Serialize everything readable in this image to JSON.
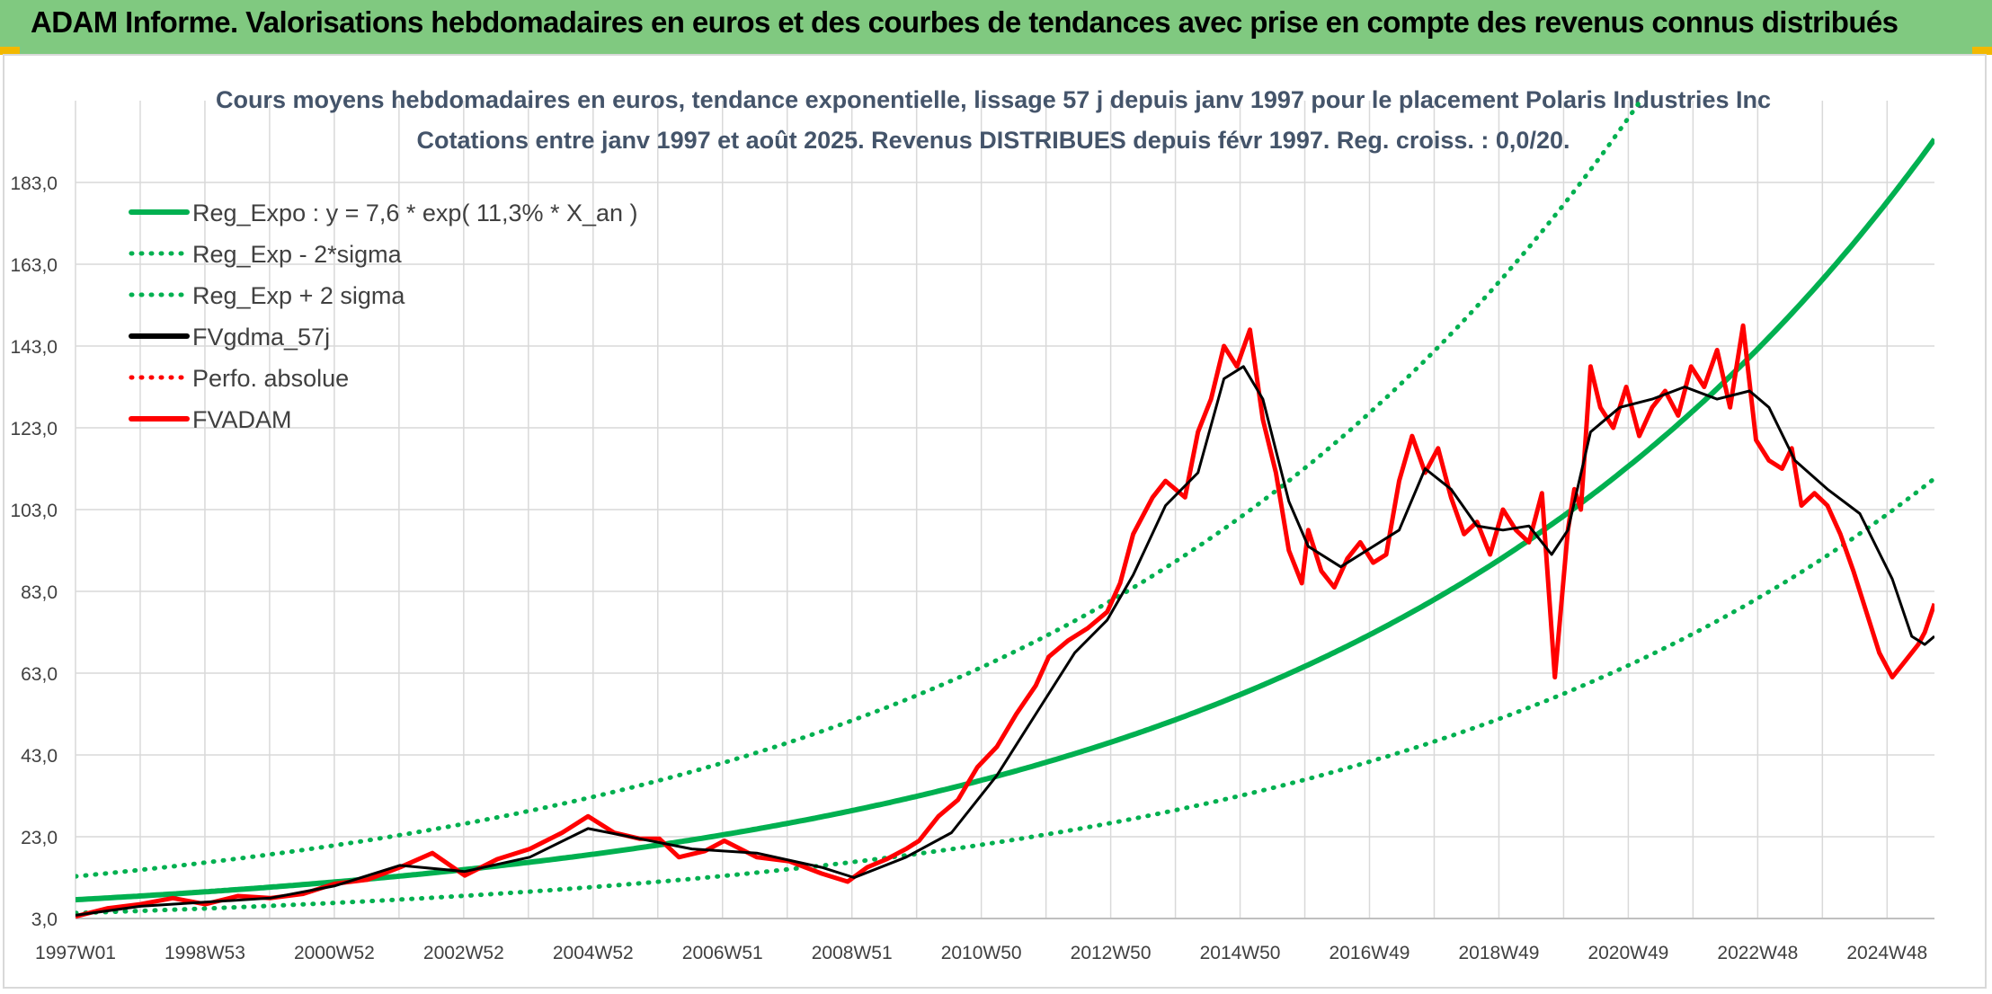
{
  "header": {
    "title": "ADAM Informe. Valorisations hebdomadaires en euros et des courbes de tendances avec prise en compte des revenus connus distribués"
  },
  "colors": {
    "banner": "#80c980",
    "reg_expo": "#00b050",
    "fvgdma": "#000000",
    "fvadam": "#ff0000",
    "perfo": "#ff0000"
  },
  "chart_data": {
    "type": "line",
    "title": "Cours moyens hebdomadaires en euros, tendance exponentielle, lissage 57 j depuis janv 1997 pour le placement Polaris Industries Inc",
    "subtitle": "Cotations entre janv 1997 et août 2025. Revenus DISTRIBUES depuis févr 1997. Reg. croiss. : 0,0/20.",
    "y_ticks": [
      "3,0",
      "23,0",
      "43,0",
      "63,0",
      "83,0",
      "103,0",
      "123,0",
      "143,0",
      "163,0",
      "183,0"
    ],
    "ylim": [
      3,
      183
    ],
    "x_ticks": [
      "1997W01",
      "1998W53",
      "2000W52",
      "2002W52",
      "2004W52",
      "2006W51",
      "2008W51",
      "2010W50",
      "2012W50",
      "2014W50",
      "2016W49",
      "2018W49",
      "2020W49",
      "2022W48",
      "2024W48"
    ],
    "x_range_years": [
      1997.0,
      2025.65
    ],
    "grid": true,
    "legend_position": "top-left",
    "legend": [
      {
        "label": "Reg_Expo : y = 7,6 * exp( 11,3% *  X_an )",
        "style": "solid",
        "color": "#00b050"
      },
      {
        "label": "Reg_Exp - 2*sigma",
        "style": "dotted",
        "color": "#00b050"
      },
      {
        "label": "Reg_Exp + 2 sigma",
        "style": "dotted",
        "color": "#00b050"
      },
      {
        "label": "FVgdma_57j",
        "style": "solid",
        "color": "#000000"
      },
      {
        "label": "Perfo. absolue",
        "style": "dotted",
        "color": "#ff0000"
      },
      {
        "label": "FVADAM",
        "style": "solid",
        "color": "#ff0000"
      }
    ],
    "regression": {
      "a": 7.6,
      "rate": 0.113,
      "sigma_factor": 1.75
    },
    "series": [
      {
        "name": "FVADAM",
        "x": [
          1997.0,
          1997.5,
          1998.0,
          1998.5,
          1999.0,
          1999.5,
          2000.0,
          2000.5,
          2001.0,
          2001.5,
          2002.0,
          2002.5,
          2003.0,
          2003.5,
          2004.0,
          2004.5,
          2004.9,
          2005.3,
          2005.7,
          2006.0,
          2006.3,
          2006.7,
          2007.0,
          2007.5,
          2008.0,
          2008.5,
          2008.9,
          2009.2,
          2009.5,
          2009.8,
          2010.0,
          2010.3,
          2010.6,
          2010.9,
          2011.2,
          2011.5,
          2011.8,
          2012.0,
          2012.3,
          2012.6,
          2012.9,
          2013.1,
          2013.3,
          2013.6,
          2013.8,
          2014.1,
          2014.3,
          2014.5,
          2014.7,
          2014.9,
          2015.1,
          2015.3,
          2015.5,
          2015.7,
          2015.9,
          2016.0,
          2016.2,
          2016.4,
          2016.6,
          2016.8,
          2017.0,
          2017.2,
          2017.4,
          2017.6,
          2017.8,
          2018.0,
          2018.2,
          2018.4,
          2018.6,
          2018.8,
          2019.0,
          2019.2,
          2019.4,
          2019.6,
          2019.8,
          2020.0,
          2020.1,
          2020.2,
          2020.35,
          2020.5,
          2020.7,
          2020.9,
          2021.1,
          2021.3,
          2021.5,
          2021.7,
          2021.9,
          2022.1,
          2022.3,
          2022.5,
          2022.7,
          2022.9,
          2023.1,
          2023.3,
          2023.45,
          2023.6,
          2023.8,
          2024.0,
          2024.2,
          2024.4,
          2024.6,
          2024.8,
          2025.0,
          2025.2,
          2025.4,
          2025.5,
          2025.65
        ],
        "values": [
          3.5,
          5.5,
          6.5,
          8.0,
          6.5,
          8.5,
          8.0,
          9.0,
          11.5,
          12.5,
          15.5,
          19.0,
          13.5,
          17.5,
          20.0,
          24.0,
          28.0,
          24.0,
          22.5,
          22.5,
          18.0,
          19.5,
          22.0,
          18.0,
          17.0,
          14.0,
          12.0,
          15.5,
          17.5,
          20.0,
          22.0,
          28.0,
          32.0,
          40.0,
          45.0,
          53.0,
          60.0,
          67.0,
          71.0,
          74.0,
          78.0,
          85.0,
          97.0,
          106.0,
          110.0,
          106.0,
          122.0,
          130.0,
          143.0,
          138.0,
          147.0,
          125.0,
          112.0,
          93.0,
          85.0,
          98.0,
          88.0,
          84.0,
          91.0,
          95.0,
          90.0,
          92.0,
          110.0,
          121.0,
          112.0,
          118.0,
          106.0,
          97.0,
          100.0,
          92.0,
          103.0,
          98.0,
          95.0,
          107.0,
          62.0,
          98.0,
          108.0,
          103.0,
          138.0,
          128.0,
          123.0,
          133.0,
          121.0,
          128.0,
          132.0,
          126.0,
          138.0,
          133.0,
          142.0,
          128.0,
          148.0,
          120.0,
          115.0,
          113.0,
          118.0,
          104.0,
          107.0,
          104.0,
          97.0,
          88.0,
          78.0,
          68.0,
          62.0,
          66.0,
          70.0,
          73.0,
          80.0
        ]
      },
      {
        "name": "FVgdma_57j",
        "x": [
          1997.0,
          1998.0,
          1999.0,
          2000.0,
          2001.0,
          2002.0,
          2003.0,
          2004.0,
          2004.9,
          2005.7,
          2006.5,
          2007.5,
          2008.5,
          2009.0,
          2009.8,
          2010.5,
          2011.2,
          2011.8,
          2012.4,
          2012.9,
          2013.3,
          2013.8,
          2014.3,
          2014.7,
          2015.0,
          2015.3,
          2015.7,
          2016.0,
          2016.5,
          2017.0,
          2017.4,
          2017.8,
          2018.2,
          2018.6,
          2019.0,
          2019.4,
          2019.75,
          2020.0,
          2020.35,
          2020.8,
          2021.3,
          2021.8,
          2022.3,
          2022.8,
          2023.1,
          2023.5,
          2024.0,
          2024.5,
          2025.0,
          2025.3,
          2025.5,
          2025.65
        ],
        "values": [
          3.8,
          6.0,
          7.0,
          8.0,
          11.0,
          16.0,
          14.5,
          18.0,
          25.0,
          22.5,
          20.0,
          19.0,
          15.5,
          13.0,
          18.0,
          24.0,
          38.0,
          53.0,
          68.0,
          76.0,
          87.0,
          104.0,
          112.0,
          135.0,
          138.0,
          130.0,
          105.0,
          94.0,
          89.0,
          94.0,
          98.0,
          113.0,
          108.0,
          99.0,
          98.0,
          99.0,
          92.0,
          98.0,
          122.0,
          128.0,
          130.0,
          133.0,
          130.0,
          132.0,
          128.0,
          115.0,
          108.0,
          102.0,
          86.0,
          72.0,
          70.0,
          72.0
        ]
      }
    ]
  }
}
